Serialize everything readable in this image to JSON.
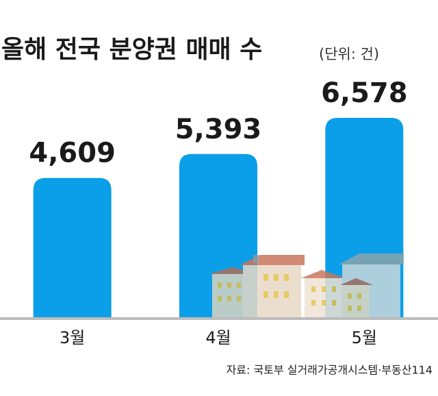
{
  "chart_data": {
    "type": "bar",
    "title": "올해 전국 분양권 매매 수",
    "subtitle": "(단위: 건)",
    "categories": [
      "3월",
      "4월",
      "5월"
    ],
    "values": [
      4609,
      5393,
      6578
    ],
    "value_labels": [
      "4,609",
      "5,393",
      "6,578"
    ],
    "color": "#0a9fe8",
    "source": "자료: 국토부 실거래가공개시스템·부동산114"
  }
}
